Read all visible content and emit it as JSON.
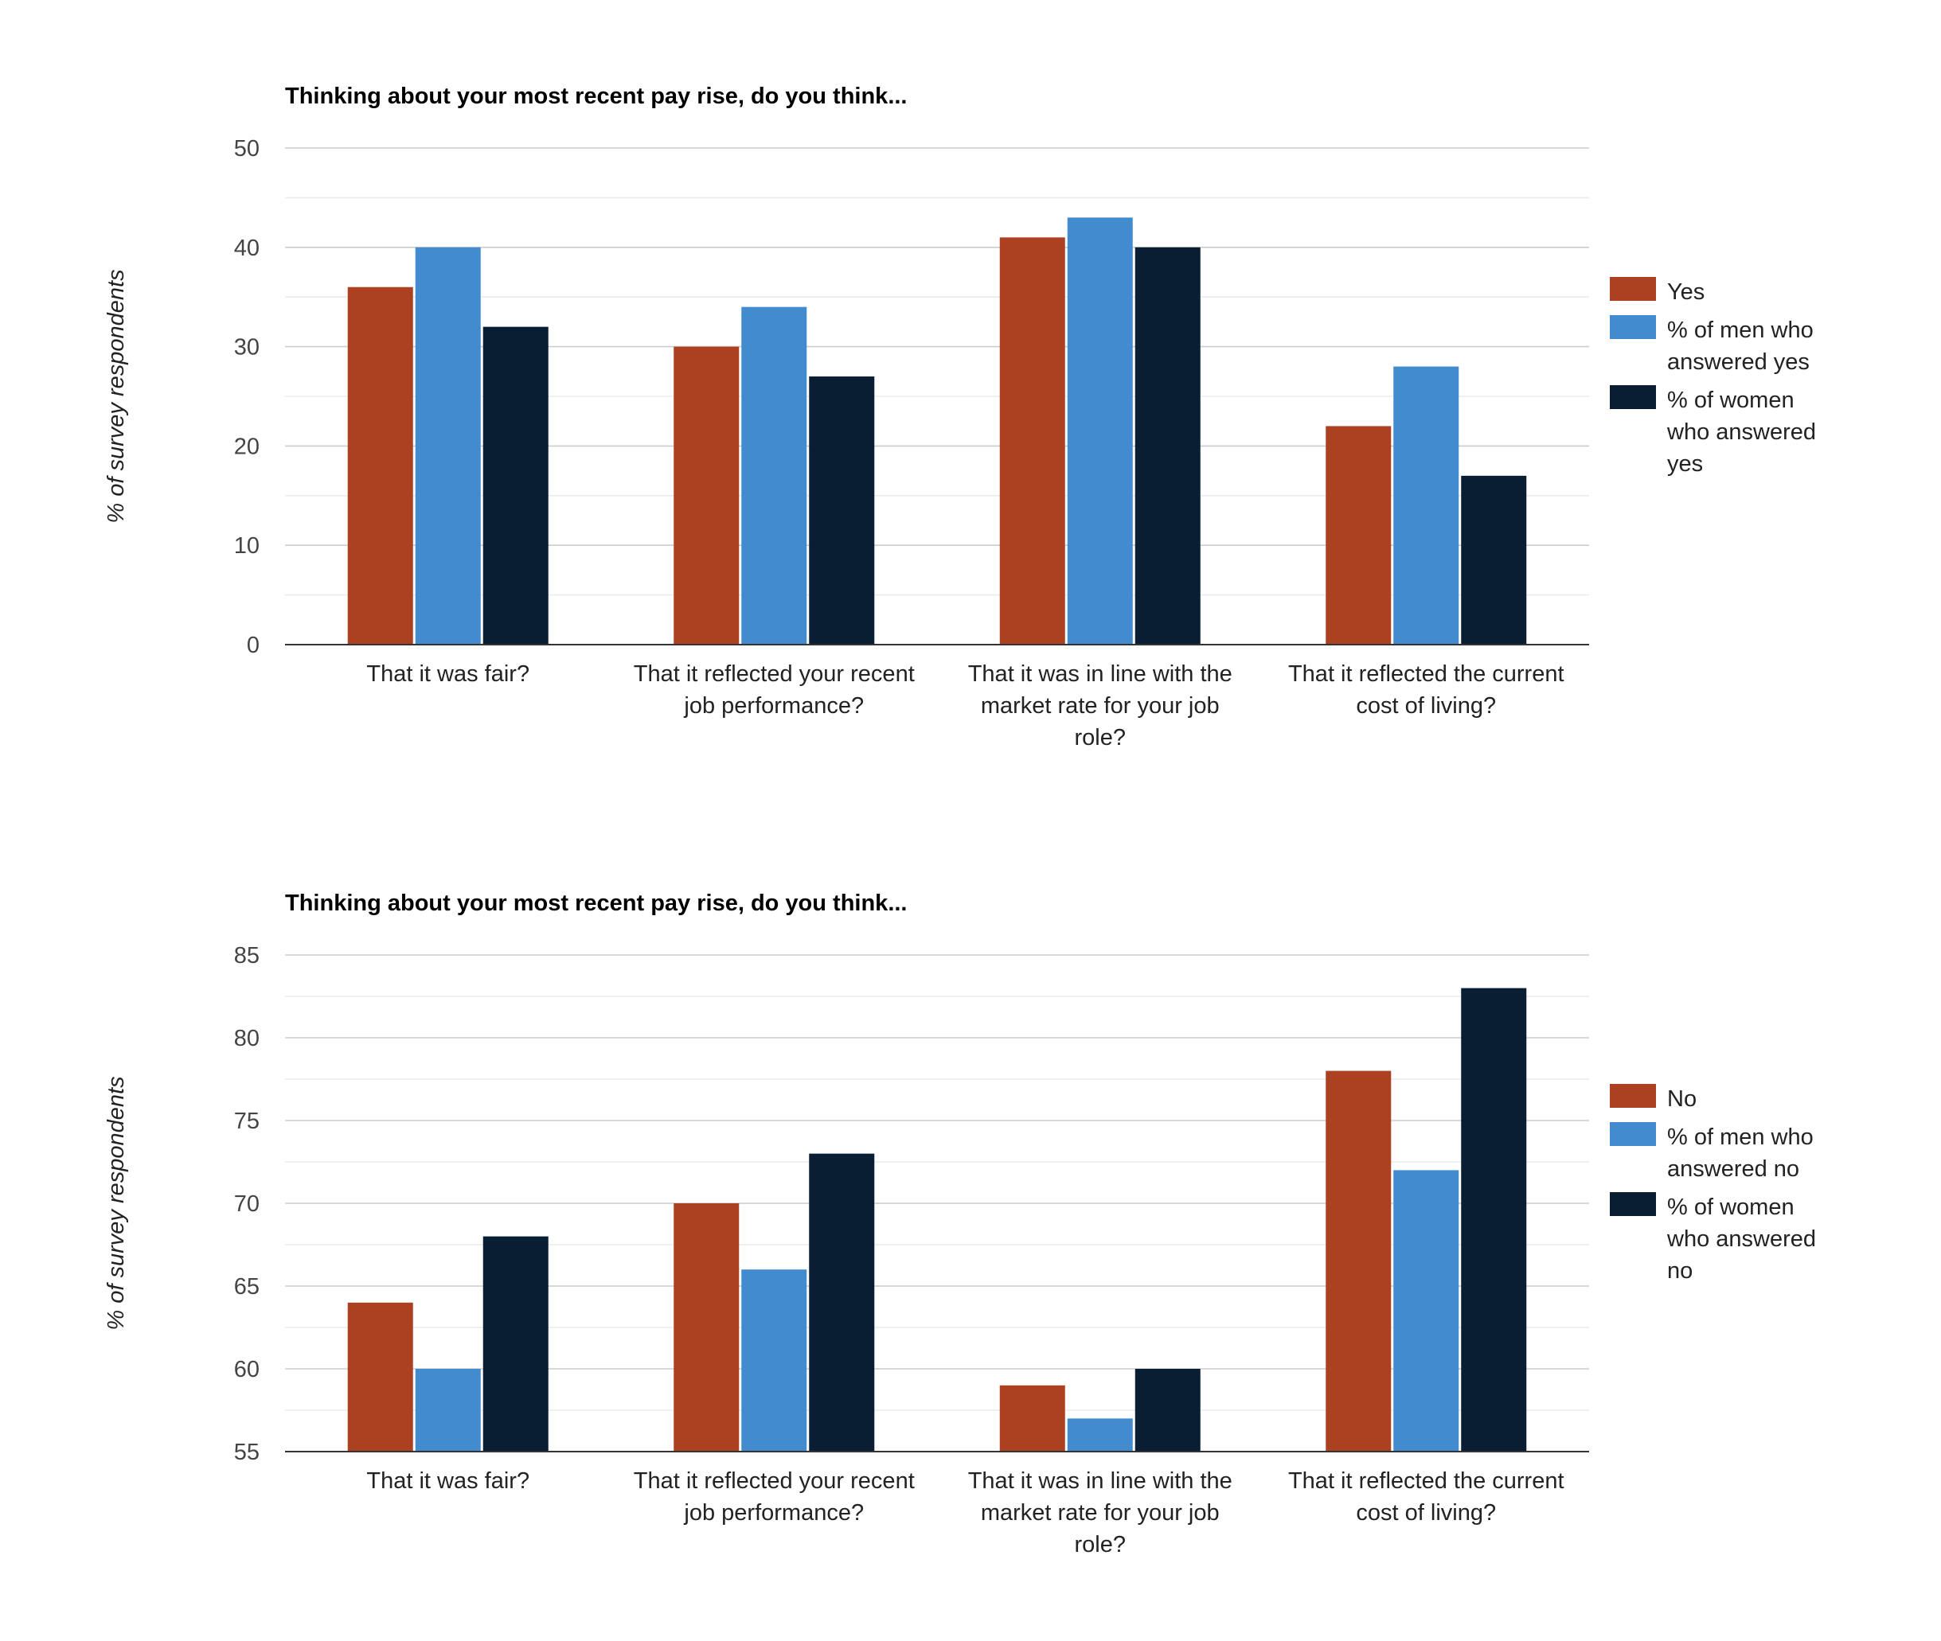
{
  "colors": {
    "series1": "#ab4120",
    "series2": "#418bce",
    "series3": "#0a1e33"
  },
  "chart_data": [
    {
      "type": "bar",
      "title": "Thinking about your most recent pay rise, do you think...",
      "xlabel": "",
      "ylabel": "% of survey respondents",
      "ylim": [
        0,
        50
      ],
      "yticks": [
        0,
        10,
        20,
        30,
        40,
        50
      ],
      "grid": true,
      "legend_position": "right",
      "categories": [
        [
          "That it was fair?"
        ],
        [
          "That it reflected your recent",
          "job performance?"
        ],
        [
          "That it was in line with the",
          "market rate for your job",
          "role?"
        ],
        [
          "That it reflected the current",
          "cost of living?"
        ]
      ],
      "series": [
        {
          "name": "Yes",
          "legend_lines": [
            "Yes"
          ],
          "values": [
            36,
            30,
            41,
            22
          ]
        },
        {
          "name": "% of men who answered yes",
          "legend_lines": [
            "% of men who",
            "answered yes"
          ],
          "values": [
            40,
            34,
            43,
            28
          ]
        },
        {
          "name": "% of women who answered yes",
          "legend_lines": [
            "% of women",
            "who answered",
            "yes"
          ],
          "values": [
            32,
            27,
            40,
            17
          ]
        }
      ]
    },
    {
      "type": "bar",
      "title": "Thinking about your most recent pay rise, do you think...",
      "xlabel": "",
      "ylabel": "% of survey respondents",
      "ylim": [
        55,
        85
      ],
      "yticks": [
        55,
        60,
        65,
        70,
        75,
        80,
        85
      ],
      "grid": true,
      "legend_position": "right",
      "categories": [
        [
          "That it was fair?"
        ],
        [
          "That it reflected your recent",
          "job performance?"
        ],
        [
          "That it was in line with the",
          "market rate for your job",
          "role?"
        ],
        [
          "That it reflected the current",
          "cost of living?"
        ]
      ],
      "series": [
        {
          "name": "No",
          "legend_lines": [
            "No"
          ],
          "values": [
            64,
            70,
            59,
            78
          ]
        },
        {
          "name": "% of men who answered no",
          "legend_lines": [
            "% of men who",
            "answered no"
          ],
          "values": [
            60,
            66,
            57,
            72
          ]
        },
        {
          "name": "% of women who answered no",
          "legend_lines": [
            "% of women",
            "who answered",
            "no"
          ],
          "values": [
            68,
            73,
            60,
            83
          ]
        }
      ]
    }
  ]
}
